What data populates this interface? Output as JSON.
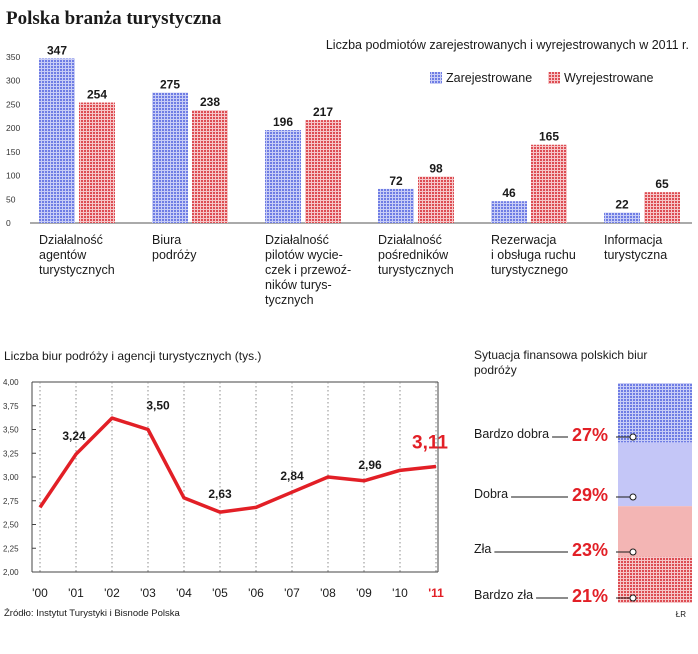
{
  "header": {
    "title": "Polska branża turystyczna",
    "subtitle": "Liczba podmiotów zarejestrowanych i wyrejestrowanych w 2011 r."
  },
  "footer": {
    "source": "Źródło: Instytut Turystyki i Bisnode Polska",
    "credit": "ŁR"
  },
  "colors": {
    "registered": "#7380e6",
    "deregistered": "#e0545a",
    "line": "#e21f26",
    "grid": "#8c8c8c"
  },
  "chart_data": [
    {
      "type": "bar",
      "title": "Liczba podmiotów zarejestrowanych i wyrejestrowanych w 2011 r.",
      "categories": [
        [
          "Działalność",
          "agentów",
          "turystycznych"
        ],
        [
          "Biura",
          "podróży"
        ],
        [
          "Działalność",
          "pilotów wycie-",
          "czek i przewoź-",
          "ników turys-",
          "tycznych"
        ],
        [
          "Działalność",
          "pośredników",
          "turystycznych"
        ],
        [
          "Rezerwacja",
          "i obsługa ruchu",
          "turystycznego"
        ],
        [
          "Informacja",
          "turystyczna"
        ]
      ],
      "series": [
        {
          "name": "Zarejestrowane",
          "values": [
            347,
            275,
            196,
            72,
            46,
            22
          ]
        },
        {
          "name": "Wyrejestrowane",
          "values": [
            254,
            238,
            217,
            98,
            165,
            65
          ]
        }
      ],
      "yticks": [
        "350",
        "300",
        "250",
        "200",
        "150",
        "100",
        "50",
        "0"
      ],
      "ylim": [
        0,
        350
      ],
      "legend": "top-right"
    },
    {
      "type": "line",
      "title": "Liczba biur podróży i agencji turystycznych (tys.)",
      "x": [
        "'00",
        "'01",
        "'02",
        "'03",
        "'04",
        "'05",
        "'06",
        "'07",
        "'08",
        "'09",
        "'10",
        "'11"
      ],
      "y": [
        2.68,
        3.24,
        3.62,
        3.5,
        2.78,
        2.63,
        2.68,
        2.84,
        3.0,
        2.96,
        3.07,
        3.11
      ],
      "labels": [
        {
          "index": 1,
          "text": "3,24"
        },
        {
          "index": 3,
          "text": "3,50"
        },
        {
          "index": 5,
          "text": "2,63"
        },
        {
          "index": 7,
          "text": "2,84"
        },
        {
          "index": 9,
          "text": "2,96"
        },
        {
          "index": 11,
          "text": "3,11"
        }
      ],
      "yticks": [
        "4,00",
        "3,75",
        "3,50",
        "3,25",
        "3,00",
        "2,75",
        "2,50",
        "2,25",
        "2,00"
      ],
      "ylim": [
        2.0,
        4.0
      ]
    },
    {
      "type": "bar",
      "title": "Sytuacja finansowa polskich biur podróży",
      "categories": [
        "Bardzo dobra",
        "Dobra",
        "Zła",
        "Bardzo zła"
      ],
      "values": [
        27,
        29,
        23,
        21
      ],
      "value_labels": [
        "27%",
        "29%",
        "23%",
        "21%"
      ]
    }
  ]
}
